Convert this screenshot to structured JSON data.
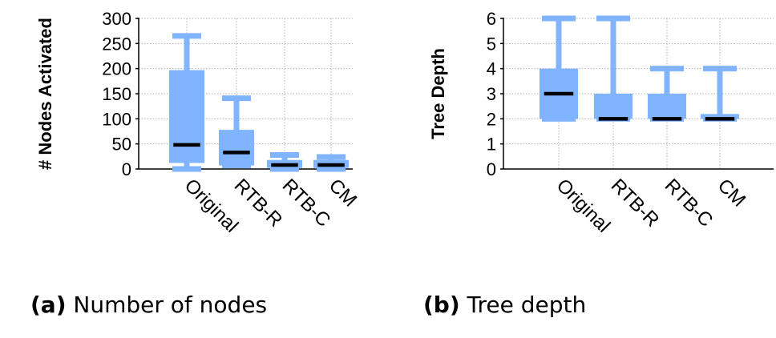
{
  "figure": {
    "subfigures": [
      {
        "label": "(a)",
        "caption": "Number of nodes"
      },
      {
        "label": "(b)",
        "caption": "Tree depth"
      }
    ]
  },
  "colors": {
    "box": "#80b4ff",
    "median": "#000000",
    "grid": "#b0b0b0"
  },
  "chart_data": [
    {
      "type": "box",
      "title": "",
      "xlabel": "",
      "ylabel": "# Nodes Activated",
      "ylim": [
        0,
        300
      ],
      "yticks": [
        0,
        50,
        100,
        150,
        200,
        250,
        300
      ],
      "grid": true,
      "categories": [
        "Original",
        "RTB-R",
        "RTB-C",
        "CM"
      ],
      "boxes": [
        {
          "min": 0,
          "q1": 12,
          "median": 48,
          "q3": 197,
          "max": 265
        },
        {
          "min": 7,
          "q1": 7,
          "median": 33,
          "q3": 78,
          "max": 141
        },
        {
          "min": 0,
          "q1": 2,
          "median": 8,
          "q3": 18,
          "max": 28
        },
        {
          "min": 0,
          "q1": 2,
          "median": 8,
          "q3": 18,
          "max": 24
        }
      ]
    },
    {
      "type": "box",
      "title": "",
      "xlabel": "",
      "ylabel": "Tree Depth",
      "ylim": [
        0,
        6
      ],
      "yticks": [
        0,
        1,
        2,
        3,
        4,
        5,
        6
      ],
      "grid": true,
      "categories": [
        "Original",
        "RTB-R",
        "RTB-C",
        "CM"
      ],
      "boxes": [
        {
          "min": 2,
          "q1": 2,
          "median": 3,
          "q3": 4,
          "max": 6
        },
        {
          "min": 2,
          "q1": 2,
          "median": 2,
          "q3": 3,
          "max": 6
        },
        {
          "min": 2,
          "q1": 2,
          "median": 2,
          "q3": 3,
          "max": 4
        },
        {
          "min": 2,
          "q1": 2,
          "median": 2,
          "q3": 2,
          "max": 4
        }
      ]
    }
  ]
}
